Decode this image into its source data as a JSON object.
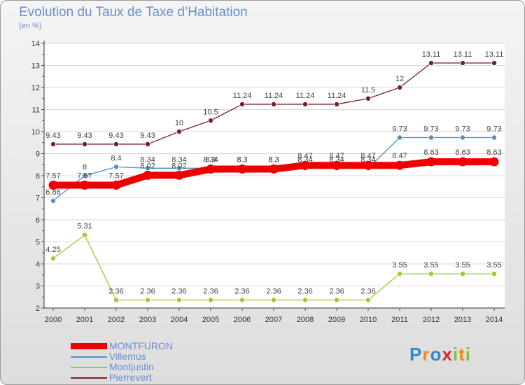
{
  "header": {
    "title": "Evolution du Taux de Taxe d’Habitation",
    "subtitle": "(en %)"
  },
  "logo": {
    "text": "Proxiti",
    "letters": [
      {
        "ch": "P",
        "color": "#2e88cf"
      },
      {
        "ch": "r",
        "color": "#ef8a1f"
      },
      {
        "ch": "o",
        "color": "#2e88cf"
      },
      {
        "ch": "x",
        "color": "#d9272e"
      },
      {
        "ch": "i",
        "color": "#7cc242"
      },
      {
        "ch": "t",
        "color": "#ef8a1f"
      },
      {
        "ch": "i",
        "color": "#7cc242"
      }
    ]
  },
  "chart_data": {
    "type": "line",
    "title": "Evolution du Taux de Taxe d’Habitation",
    "ylabel": "(en %)",
    "xlabel": "",
    "ylim": [
      2,
      14
    ],
    "y_ticks": [
      "2",
      "3",
      "4",
      "5",
      "6",
      "7",
      "8",
      "9",
      "10",
      "11",
      "12",
      "13",
      "14"
    ],
    "x": [
      "2000",
      "2001",
      "2002",
      "2003",
      "2004",
      "2005",
      "2006",
      "2007",
      "2008",
      "2009",
      "2010",
      "2011",
      "2012",
      "2013",
      "2014"
    ],
    "grid": "horizontal",
    "legend_position": "bottom-left",
    "series": [
      {
        "name": "Pierrevert",
        "color": "#7a1f23",
        "values": [
          9.43,
          9.43,
          9.43,
          9.43,
          10,
          10.5,
          11.24,
          11.24,
          11.24,
          11.24,
          11.5,
          12,
          13.11,
          13.11,
          13.11
        ],
        "labels": [
          "9.43",
          "9.43",
          "9.43",
          "9.43",
          "10",
          "10.5",
          "11.24",
          "11.24",
          "11.24",
          "11.24",
          "11.5",
          "12",
          "13.11",
          "13.11",
          "13.11"
        ]
      },
      {
        "name": "Villemus",
        "color": "#4f8fc7",
        "values": [
          6.86,
          8,
          8.4,
          8.34,
          8.34,
          8.34,
          8.34,
          8.34,
          8.34,
          8.34,
          8.34,
          9.73,
          9.73,
          9.73,
          9.73
        ],
        "labels": [
          "6.86",
          "8",
          "8.4",
          "8.34",
          "8.34",
          "8.34",
          "8.3",
          "8.3",
          "8.34",
          "8.34",
          "8.34",
          "9.73",
          "9.73",
          "9.73",
          "9.73"
        ]
      },
      {
        "name": "Montjustin",
        "color": "#9acd32",
        "values": [
          4.25,
          5.31,
          2.36,
          2.36,
          2.36,
          2.36,
          2.36,
          2.36,
          2.36,
          2.36,
          2.36,
          3.55,
          3.55,
          3.55,
          3.55
        ],
        "labels": [
          "4.25",
          "5.31",
          "2.36",
          "2.36",
          "2.36",
          "2.36",
          "2.36",
          "2.36",
          "2.36",
          "2.36",
          "2.36",
          "3.55",
          "3.55",
          "3.55",
          "3.55"
        ]
      },
      {
        "name": "MONTFURON",
        "color": "#ee0000",
        "values": [
          7.57,
          7.57,
          7.57,
          8.02,
          8.02,
          8.3,
          8.3,
          8.3,
          8.47,
          8.47,
          8.47,
          8.47,
          8.63,
          8.63,
          8.63
        ],
        "labels": [
          "7.57",
          "7.57",
          "7.57",
          "8.02",
          "8.02",
          "8.3",
          "8.3",
          "8.3",
          "8.47",
          "8.47",
          "8.47",
          "8.47",
          "8.63",
          "8.63",
          "8.63"
        ]
      }
    ]
  },
  "legend": {
    "items": [
      {
        "name": "MONTFURON",
        "color": "#ee0000",
        "thick": true
      },
      {
        "name": "Villemus",
        "color": "#4f8fc7",
        "thick": false
      },
      {
        "name": "Montjustin",
        "color": "#9acd32",
        "thick": false
      },
      {
        "name": "Pierrevert",
        "color": "#7a1f23",
        "thick": false
      }
    ]
  }
}
